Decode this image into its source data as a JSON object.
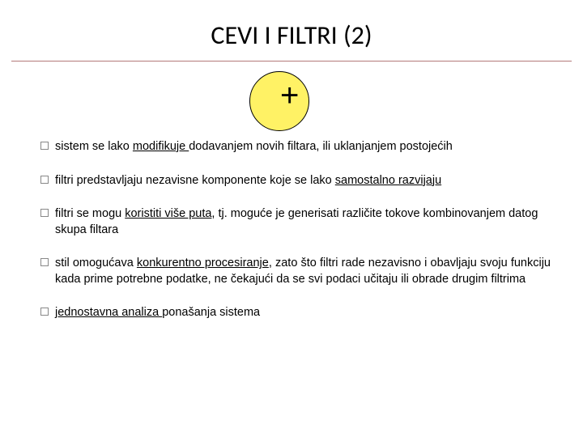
{
  "title": "CEVI I FILTRI (2)",
  "circle": {
    "fill_color": "#fff265",
    "border_color": "#000000",
    "plus_symbol": "+",
    "plus_color": "#000000"
  },
  "hr_color": "#b37a7a",
  "background_color": "#ffffff",
  "bullet_square_border": "#888888",
  "body_fontsize": 14.5,
  "title_fontsize": 32,
  "bullets": [
    {
      "pre": "sistem se lako ",
      "u1": "modifikuje ",
      "post": "dodavanjem novih filtara, ili uklanjanjem postojećih",
      "justify": false
    },
    {
      "pre": "filtri predstavljaju nezavisne komponente koje se lako ",
      "u1": "samostalno razvijaju",
      "post": "",
      "justify": false
    },
    {
      "pre": "filtri se mogu ",
      "u1": "koristiti više puta",
      "post": ", tj. moguće je generisati različite tokove kombinovanjem datog skupa filtara",
      "justify": false
    },
    {
      "pre": "stil omogućava ",
      "u1": "konkurentno procesiranje",
      "post": ", zato što filtri rade nezavisno i obavljaju svoju funkciju kada prime potrebne podatke, ne čekajući da se svi podaci učitaju ili obrade drugim filtrima",
      "justify": true
    },
    {
      "pre": "",
      "u1": "jednostavna analiza ",
      "post": "ponašanja sistema",
      "justify": false
    }
  ]
}
